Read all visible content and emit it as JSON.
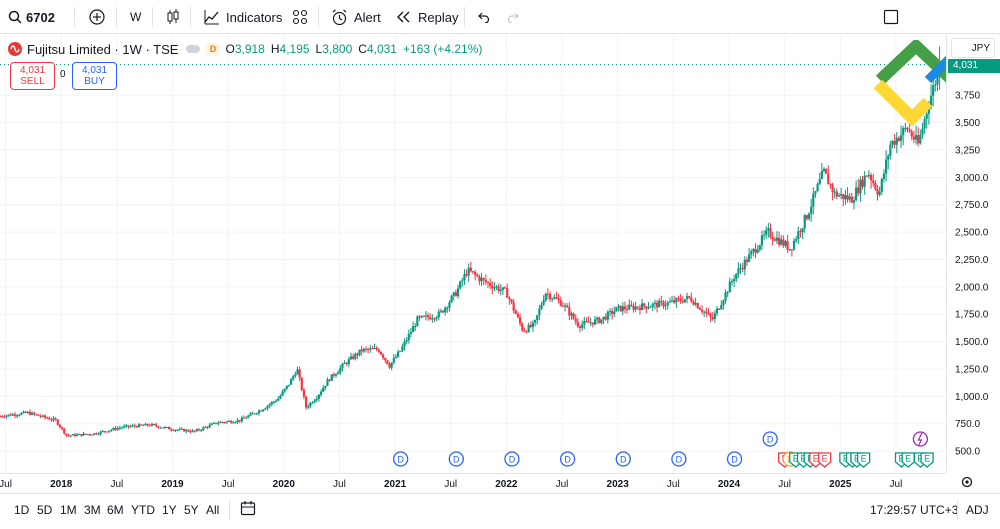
{
  "toolbar": {
    "symbol": "6702",
    "interval": "W",
    "indicators_label": "Indicators",
    "alert_label": "Alert",
    "replay_label": "Replay"
  },
  "legend": {
    "title": "Fujitsu Limited · 1W · TSE",
    "badge": "D",
    "o_key": "O",
    "o_val": "3,918",
    "h_key": "H",
    "h_val": "4,195",
    "l_key": "L",
    "l_val": "3,800",
    "c_key": "C",
    "c_val": "4,031",
    "change": "+163 (+4.21%)"
  },
  "trade": {
    "sell_price": "4,031",
    "sell_label": "SELL",
    "spread": "0",
    "buy_price": "4,031",
    "buy_label": "BUY"
  },
  "price_scale": {
    "currency": "JPY",
    "current_price": "4,031",
    "ticks": [
      "3,750",
      "3,500",
      "3,250",
      "3,000.0",
      "2,750.0",
      "2,500.0",
      "2,250.0",
      "2,000.0",
      "1,750.0",
      "1,500.0",
      "1,250.0",
      "1,000.0",
      "750.0",
      "500.0"
    ]
  },
  "time_scale": {
    "labels": [
      "Jul",
      "2018",
      "Jul",
      "2019",
      "Jul",
      "2020",
      "Jul",
      "2021",
      "Jul",
      "2022",
      "Jul",
      "2023",
      "Jul",
      "2024",
      "Jul",
      "2025",
      "Jul"
    ]
  },
  "bottom_bar": {
    "periods": [
      "1D",
      "5D",
      "1M",
      "3M",
      "6M",
      "YTD",
      "1Y",
      "5Y",
      "All"
    ],
    "clock": "17:29:57 UTC+3",
    "adj_label": "ADJ"
  },
  "colors": {
    "up": "#089981",
    "down": "#f23645",
    "dividend": "#2962ff",
    "earnings_green": "#089981",
    "earnings_red": "#f23645",
    "split_purple": "#9c27b0"
  },
  "chart_data": {
    "type": "candlestick",
    "title": "Fujitsu Limited · 1W · TSE",
    "ylim": [
      300,
      4300
    ],
    "x_range": [
      2017.45,
      2025.95
    ],
    "y_ticks": [
      500,
      750,
      1000,
      1250,
      1500,
      1750,
      2000,
      2250,
      2500,
      2750,
      3000,
      3250,
      3500,
      3750
    ],
    "price_path": [
      [
        2017.45,
        820
      ],
      [
        2017.7,
        850
      ],
      [
        2017.95,
        780
      ],
      [
        2018.05,
        640
      ],
      [
        2018.3,
        660
      ],
      [
        2018.55,
        720
      ],
      [
        2018.8,
        740
      ],
      [
        2019.0,
        700
      ],
      [
        2019.2,
        680
      ],
      [
        2019.4,
        760
      ],
      [
        2019.6,
        780
      ],
      [
        2019.8,
        880
      ],
      [
        2019.95,
        980
      ],
      [
        2020.05,
        1120
      ],
      [
        2020.12,
        1250
      ],
      [
        2020.2,
        900
      ],
      [
        2020.3,
        1000
      ],
      [
        2020.4,
        1150
      ],
      [
        2020.55,
        1300
      ],
      [
        2020.7,
        1420
      ],
      [
        2020.85,
        1430
      ],
      [
        2020.95,
        1280
      ],
      [
        2021.05,
        1420
      ],
      [
        2021.2,
        1700
      ],
      [
        2021.4,
        1750
      ],
      [
        2021.55,
        1950
      ],
      [
        2021.65,
        2150
      ],
      [
        2021.8,
        2050
      ],
      [
        2022.0,
        1950
      ],
      [
        2022.15,
        1600
      ],
      [
        2022.25,
        1650
      ],
      [
        2022.35,
        1950
      ],
      [
        2022.5,
        1850
      ],
      [
        2022.65,
        1650
      ],
      [
        2022.85,
        1700
      ],
      [
        2023.0,
        1800
      ],
      [
        2023.2,
        1820
      ],
      [
        2023.45,
        1850
      ],
      [
        2023.65,
        1900
      ],
      [
        2023.85,
        1700
      ],
      [
        2023.95,
        1900
      ],
      [
        2024.05,
        2100
      ],
      [
        2024.2,
        2300
      ],
      [
        2024.35,
        2500
      ],
      [
        2024.55,
        2350
      ],
      [
        2024.7,
        2650
      ],
      [
        2024.85,
        3050
      ],
      [
        2024.95,
        2850
      ],
      [
        2025.1,
        2800
      ],
      [
        2025.25,
        3050
      ],
      [
        2025.35,
        2850
      ],
      [
        2025.45,
        3300
      ],
      [
        2025.6,
        3450
      ],
      [
        2025.7,
        3300
      ],
      [
        2025.8,
        3700
      ],
      [
        2025.9,
        4031
      ]
    ],
    "last": {
      "open": 3918,
      "high": 4195,
      "low": 3800,
      "close": 4031
    },
    "events": {
      "dividends": [
        2021.05,
        2021.55,
        2022.05,
        2022.55,
        2023.05,
        2023.55,
        2024.05
      ],
      "dividend_upper": [
        2024.37
      ],
      "earnings_dividend": [
        2024.55
      ],
      "earnings": [
        2024.67,
        2025.05,
        2025.15,
        2025.55,
        2025.72
      ],
      "earnings_pair": [
        2024.82
      ],
      "split": [
        2025.72
      ]
    }
  }
}
